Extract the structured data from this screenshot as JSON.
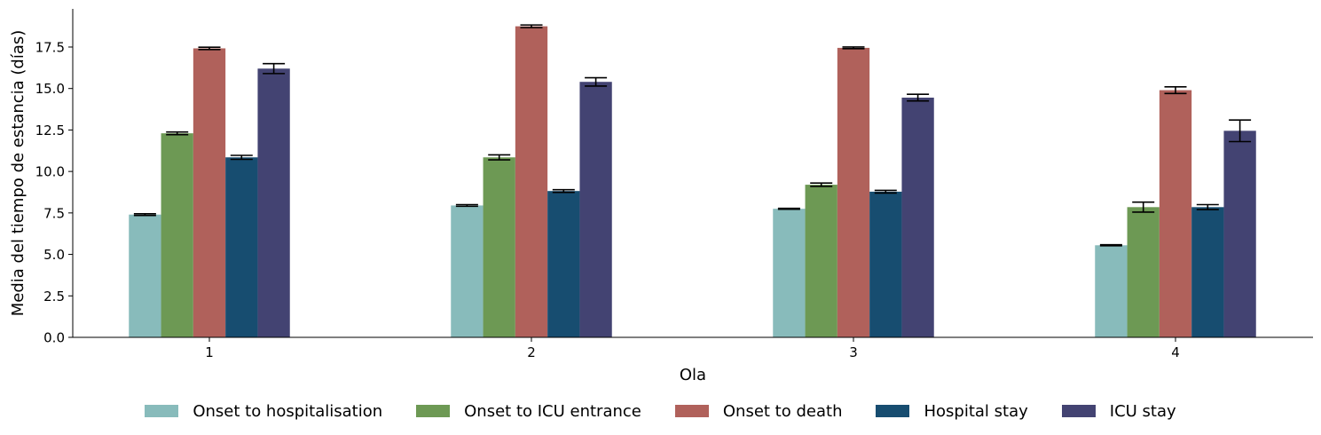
{
  "chart_data": {
    "type": "bar",
    "title": "",
    "xlabel": "Ola",
    "ylabel": "Media del tiempo de estancia (días)",
    "categories": [
      "1",
      "2",
      "3",
      "4"
    ],
    "ylim": [
      0,
      19.8
    ],
    "yticks": [
      "0.0",
      "2.5",
      "5.0",
      "7.5",
      "10.0",
      "12.5",
      "15.0",
      "17.5"
    ],
    "grid": false,
    "legend_position": "bottom-center",
    "series": [
      {
        "name": "Onset to hospitalisation",
        "color": "#88bbbb",
        "values": [
          7.4,
          7.95,
          7.75,
          5.55
        ],
        "errors": [
          0.05,
          0.05,
          0.03,
          0.03
        ]
      },
      {
        "name": "Onset to ICU entrance",
        "color": "#6d9954",
        "values": [
          12.3,
          10.85,
          9.2,
          7.85
        ],
        "errors": [
          0.08,
          0.15,
          0.1,
          0.3
        ]
      },
      {
        "name": "Onset to death",
        "color": "#b0615b",
        "values": [
          17.42,
          18.75,
          17.45,
          14.9
        ],
        "errors": [
          0.07,
          0.08,
          0.05,
          0.2
        ]
      },
      {
        "name": "Hospital stay",
        "color": "#174d70",
        "values": [
          10.85,
          8.82,
          8.78,
          7.85
        ],
        "errors": [
          0.12,
          0.08,
          0.08,
          0.15
        ]
      },
      {
        "name": "ICU stay",
        "color": "#434372",
        "values": [
          16.2,
          15.4,
          14.45,
          12.45
        ],
        "errors": [
          0.3,
          0.25,
          0.2,
          0.65
        ]
      }
    ]
  }
}
